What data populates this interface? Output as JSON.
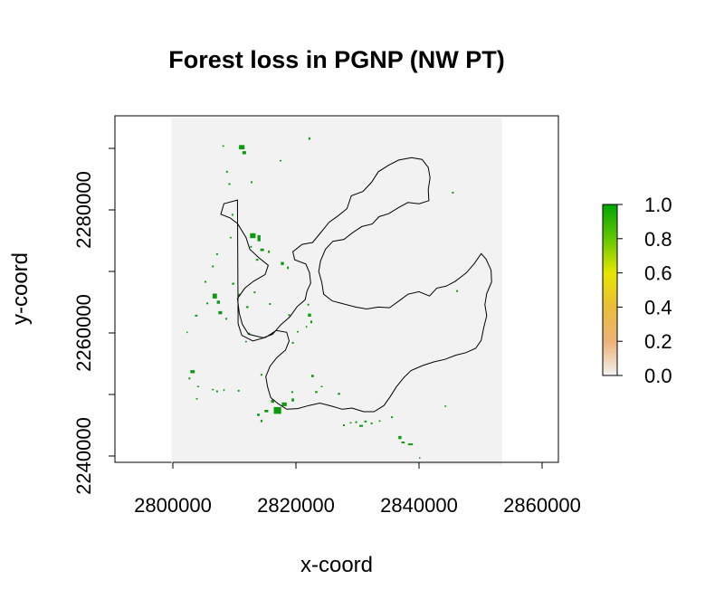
{
  "title": "Forest loss in PGNP (NW PT)",
  "xlabel": "x-coord",
  "ylabel": "y-coord",
  "colors": {
    "raster_background": "#f2f2f2",
    "loss_pixels": "#0e9a0e",
    "boundary": "#000000"
  },
  "chart_data": {
    "type": "heatmap",
    "title": "Forest loss in PGNP (NW PT)",
    "xlabel": "x-coord",
    "ylabel": "y-coord",
    "xlim": [
      2788000,
      2862000
    ],
    "ylim": [
      2238000,
      2295000
    ],
    "x_ticks": [
      "2800000",
      "2820000",
      "2840000",
      "2860000"
    ],
    "y_ticks": [
      "2240000",
      "2260000",
      "2280000"
    ],
    "x_tick_values": [
      2800000,
      2820000,
      2840000,
      2860000
    ],
    "y_tick_values": [
      2240000,
      2260000,
      2280000
    ],
    "raster_extent": {
      "xmin": 2799800,
      "xmax": 2853500,
      "ymin": 2238500,
      "ymax": 2295000
    },
    "legend": {
      "ticks": [
        "1.0",
        "0.8",
        "0.6",
        "0.4",
        "0.2",
        "0.0"
      ],
      "min": 0.0,
      "max": 1.0,
      "colors": [
        "#00a600",
        "#63c600",
        "#e6e600",
        "#e9bd3a",
        "#ecb176",
        "#f2f2f2"
      ]
    },
    "boundary": [
      [
        2810500,
        2281600
      ],
      [
        2808300,
        2281000
      ],
      [
        2807800,
        2279300
      ],
      [
        2809300,
        2278700
      ],
      [
        2810500,
        2277800
      ],
      [
        2811900,
        2275500
      ],
      [
        2812500,
        2273600
      ],
      [
        2813900,
        2272300
      ],
      [
        2815500,
        2271000
      ],
      [
        2815000,
        2269500
      ],
      [
        2813100,
        2268400
      ],
      [
        2811700,
        2267300
      ],
      [
        2810500,
        2265600
      ],
      [
        2810800,
        2263200
      ],
      [
        2811300,
        2261400
      ],
      [
        2812300,
        2259800
      ],
      [
        2814700,
        2259200
      ],
      [
        2816200,
        2259800
      ],
      [
        2817500,
        2261300
      ],
      [
        2819000,
        2262600
      ],
      [
        2820200,
        2264300
      ],
      [
        2821500,
        2265400
      ],
      [
        2821800,
        2266800
      ],
      [
        2822400,
        2268100
      ],
      [
        2822200,
        2269800
      ],
      [
        2821600,
        2271200
      ],
      [
        2819800,
        2271900
      ],
      [
        2819500,
        2273200
      ],
      [
        2821000,
        2274400
      ],
      [
        2822700,
        2274700
      ],
      [
        2824100,
        2276400
      ],
      [
        2825400,
        2278000
      ],
      [
        2826800,
        2279000
      ],
      [
        2828300,
        2280200
      ],
      [
        2829000,
        2282300
      ],
      [
        2830900,
        2283000
      ],
      [
        2832300,
        2284500
      ],
      [
        2833400,
        2286200
      ],
      [
        2835100,
        2287300
      ],
      [
        2836700,
        2288100
      ],
      [
        2838800,
        2288500
      ],
      [
        2840500,
        2288200
      ],
      [
        2841500,
        2286900
      ],
      [
        2841800,
        2285200
      ],
      [
        2841500,
        2283300
      ],
      [
        2841600,
        2281500
      ],
      [
        2840000,
        2281000
      ],
      [
        2838200,
        2281200
      ],
      [
        2836700,
        2280400
      ],
      [
        2835100,
        2279400
      ],
      [
        2833500,
        2278900
      ],
      [
        2832400,
        2277700
      ],
      [
        2830700,
        2277300
      ],
      [
        2829200,
        2276300
      ],
      [
        2827800,
        2275200
      ],
      [
        2826000,
        2274900
      ],
      [
        2824800,
        2273600
      ],
      [
        2824000,
        2271700
      ],
      [
        2823700,
        2270000
      ],
      [
        2824200,
        2268200
      ],
      [
        2824500,
        2266300
      ],
      [
        2825900,
        2265200
      ],
      [
        2827800,
        2264700
      ],
      [
        2829700,
        2264200
      ],
      [
        2831500,
        2263900
      ],
      [
        2833400,
        2264200
      ],
      [
        2835200,
        2264100
      ],
      [
        2836600,
        2265100
      ],
      [
        2838200,
        2266300
      ],
      [
        2840000,
        2266700
      ],
      [
        2841700,
        2266000
      ],
      [
        2842900,
        2267300
      ],
      [
        2844400,
        2267600
      ],
      [
        2845900,
        2268400
      ],
      [
        2847700,
        2269800
      ],
      [
        2849000,
        2271300
      ],
      [
        2850100,
        2272900
      ],
      [
        2850900,
        2272000
      ],
      [
        2851700,
        2270200
      ],
      [
        2851800,
        2268300
      ],
      [
        2851000,
        2266400
      ],
      [
        2850700,
        2264600
      ],
      [
        2851000,
        2262800
      ],
      [
        2850500,
        2260800
      ],
      [
        2850100,
        2258800
      ],
      [
        2849200,
        2257500
      ],
      [
        2847600,
        2256800
      ],
      [
        2846000,
        2256400
      ],
      [
        2844200,
        2255700
      ],
      [
        2842400,
        2255300
      ],
      [
        2840600,
        2254700
      ],
      [
        2838700,
        2253900
      ],
      [
        2837500,
        2252700
      ],
      [
        2836300,
        2251200
      ],
      [
        2835300,
        2249600
      ],
      [
        2834300,
        2248200
      ],
      [
        2832700,
        2247200
      ],
      [
        2831000,
        2247200
      ],
      [
        2829100,
        2247800
      ],
      [
        2827500,
        2247600
      ],
      [
        2825800,
        2248100
      ],
      [
        2823900,
        2248600
      ],
      [
        2822100,
        2248200
      ],
      [
        2820300,
        2247700
      ],
      [
        2818500,
        2247600
      ],
      [
        2817100,
        2248500
      ],
      [
        2815900,
        2249500
      ],
      [
        2815400,
        2251200
      ],
      [
        2815100,
        2252900
      ],
      [
        2815800,
        2254600
      ],
      [
        2816900,
        2256000
      ],
      [
        2818300,
        2257200
      ],
      [
        2818900,
        2258700
      ],
      [
        2818500,
        2260100
      ],
      [
        2816800,
        2260400
      ],
      [
        2815100,
        2259300
      ],
      [
        2813000,
        2258700
      ],
      [
        2811200,
        2259600
      ],
      [
        2810600,
        2261500
      ]
    ],
    "loss_patches": [
      [
        2811200,
        2290200,
        900,
        700
      ],
      [
        2811600,
        2289300,
        600,
        500
      ],
      [
        2808200,
        2290400,
        300,
        200
      ],
      [
        2808800,
        2286200,
        300,
        300
      ],
      [
        2809200,
        2284200,
        300,
        300
      ],
      [
        2812800,
        2284500,
        300,
        300
      ],
      [
        2817500,
        2288000,
        300,
        200
      ],
      [
        2822200,
        2291600,
        300,
        400
      ],
      [
        2809700,
        2279200,
        300,
        300
      ],
      [
        2813000,
        2275800,
        900,
        800
      ],
      [
        2814000,
        2275400,
        500,
        1000
      ],
      [
        2814500,
        2273500,
        600,
        400
      ],
      [
        2812700,
        2274000,
        300,
        300
      ],
      [
        2813700,
        2271900,
        400,
        300
      ],
      [
        2815600,
        2273200,
        300,
        400
      ],
      [
        2817800,
        2271300,
        500,
        500
      ],
      [
        2818700,
        2270600,
        300,
        400
      ],
      [
        2809400,
        2275500,
        300,
        200
      ],
      [
        2807200,
        2272800,
        300,
        300
      ],
      [
        2806500,
        2270800,
        300,
        300
      ],
      [
        2809800,
        2268000,
        400,
        300
      ],
      [
        2806800,
        2266000,
        700,
        800
      ],
      [
        2807400,
        2265000,
        500,
        500
      ],
      [
        2805600,
        2264800,
        300,
        300
      ],
      [
        2807700,
        2263300,
        600,
        500
      ],
      [
        2805300,
        2268300,
        300,
        300
      ],
      [
        2803800,
        2262800,
        400,
        300
      ],
      [
        2808700,
        2262300,
        300,
        300
      ],
      [
        2810800,
        2266200,
        300,
        300
      ],
      [
        2802300,
        2260100,
        200,
        200
      ],
      [
        2812100,
        2264200,
        400,
        300
      ],
      [
        2813300,
        2266600,
        300,
        300
      ],
      [
        2815800,
        2264700,
        300,
        300
      ],
      [
        2818900,
        2262900,
        300,
        300
      ],
      [
        2812400,
        2259900,
        300,
        300
      ],
      [
        2811900,
        2258600,
        300,
        200
      ],
      [
        2822200,
        2262900,
        500,
        500
      ],
      [
        2822500,
        2261800,
        300,
        400
      ],
      [
        2821700,
        2261000,
        200,
        300
      ],
      [
        2819500,
        2258400,
        300,
        300
      ],
      [
        2820300,
        2260200,
        300,
        200
      ],
      [
        2822000,
        2264600,
        300,
        300
      ],
      [
        2803200,
        2253700,
        700,
        500
      ],
      [
        2802700,
        2252600,
        300,
        300
      ],
      [
        2804100,
        2251300,
        300,
        200
      ],
      [
        2806500,
        2250800,
        300,
        200
      ],
      [
        2807200,
        2250500,
        300,
        300
      ],
      [
        2808300,
        2250700,
        200,
        300
      ],
      [
        2810700,
        2250600,
        300,
        300
      ],
      [
        2803900,
        2249300,
        300,
        200
      ],
      [
        2814400,
        2253200,
        300,
        300
      ],
      [
        2817000,
        2247400,
        1200,
        1100
      ],
      [
        2818100,
        2248400,
        800,
        600
      ],
      [
        2819500,
        2249100,
        400,
        500
      ],
      [
        2819400,
        2250400,
        300,
        300
      ],
      [
        2816200,
        2248900,
        500,
        500
      ],
      [
        2815200,
        2247300,
        600,
        400
      ],
      [
        2813900,
        2246700,
        400,
        400
      ],
      [
        2814400,
        2245700,
        300,
        400
      ],
      [
        2822700,
        2253000,
        400,
        400
      ],
      [
        2823300,
        2250400,
        400,
        300
      ],
      [
        2827000,
        2250100,
        400,
        300
      ],
      [
        2824200,
        2251300,
        300,
        200
      ],
      [
        2827800,
        2245000,
        300,
        300
      ],
      [
        2828900,
        2245400,
        300,
        200
      ],
      [
        2829800,
        2245500,
        300,
        300
      ],
      [
        2830600,
        2244900,
        600,
        300
      ],
      [
        2831300,
        2245600,
        400,
        300
      ],
      [
        2832300,
        2245300,
        300,
        300
      ],
      [
        2833600,
        2245700,
        300,
        200
      ],
      [
        2835600,
        2246300,
        300,
        300
      ],
      [
        2836900,
        2243000,
        500,
        500
      ],
      [
        2837400,
        2242200,
        500,
        300
      ],
      [
        2838600,
        2241900,
        800,
        300
      ],
      [
        2840100,
        2239700,
        200,
        200
      ],
      [
        2844300,
        2248100,
        300,
        200
      ],
      [
        2846200,
        2266800,
        300,
        300
      ],
      [
        2845500,
        2282800,
        300,
        300
      ]
    ]
  }
}
